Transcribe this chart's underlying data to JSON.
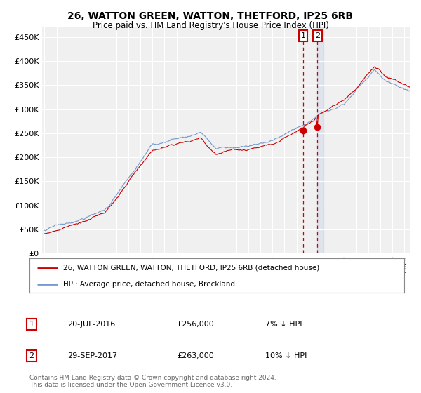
{
  "title": "26, WATTON GREEN, WATTON, THETFORD, IP25 6RB",
  "subtitle": "Price paid vs. HM Land Registry's House Price Index (HPI)",
  "ylabel_ticks": [
    0,
    50000,
    100000,
    150000,
    200000,
    250000,
    300000,
    350000,
    400000,
    450000
  ],
  "ylim": [
    0,
    470000
  ],
  "xlim_start": 1994.8,
  "xlim_end": 2025.5,
  "red_line_color": "#cc0000",
  "blue_line_color": "#7799cc",
  "grid_color": "#cccccc",
  "marker1_x": 2016.55,
  "marker2_x": 2017.75,
  "marker1_y": 256000,
  "marker2_y": 263000,
  "legend_label1": "26, WATTON GREEN, WATTON, THETFORD, IP25 6RB (detached house)",
  "legend_label2": "HPI: Average price, detached house, Breckland",
  "transaction1_date": "20-JUL-2016",
  "transaction1_price": "£256,000",
  "transaction1_note": "7% ↓ HPI",
  "transaction2_date": "29-SEP-2017",
  "transaction2_price": "£263,000",
  "transaction2_note": "10% ↓ HPI",
  "footer": "Contains HM Land Registry data © Crown copyright and database right 2024.\nThis data is licensed under the Open Government Licence v3.0.",
  "background_color": "#ffffff",
  "chart_bg": "#f5f5f5"
}
